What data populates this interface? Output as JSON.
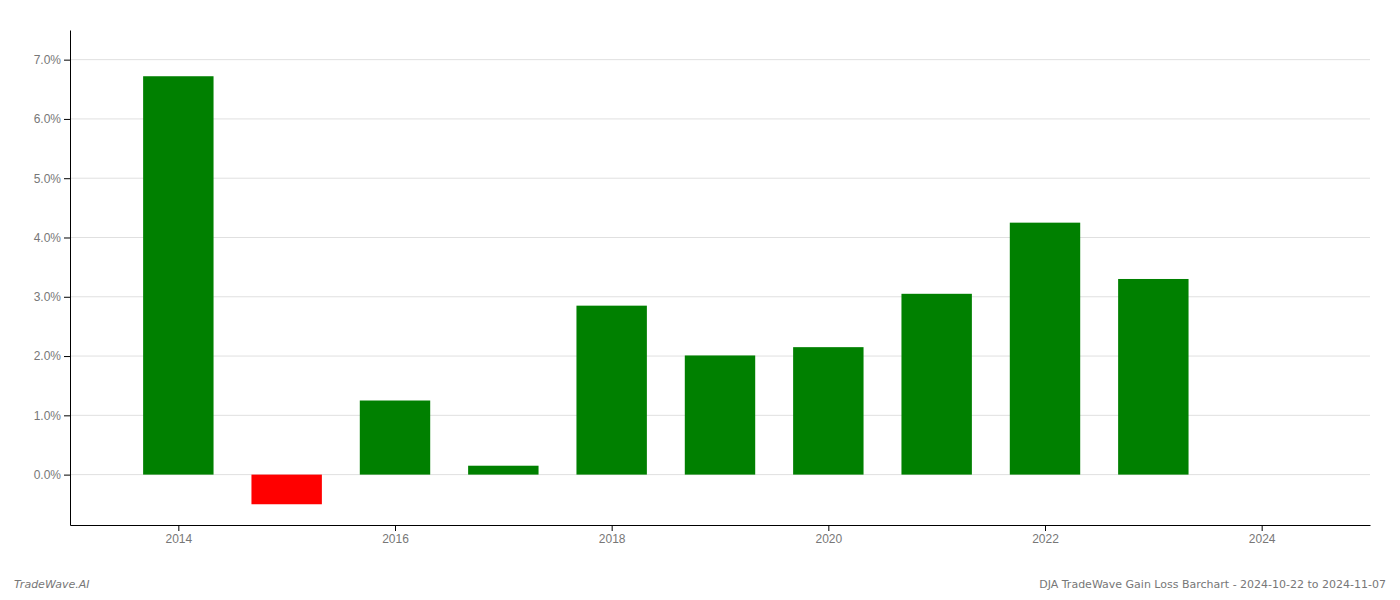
{
  "chart_data": {
    "type": "bar",
    "x": [
      2014,
      2015,
      2016,
      2017,
      2018,
      2019,
      2020,
      2021,
      2022,
      2023
    ],
    "values": [
      0.0672,
      -0.005,
      0.0125,
      0.0015,
      0.0285,
      0.0201,
      0.0215,
      0.0305,
      0.0425,
      0.033
    ],
    "colors": [
      "#008000",
      "#ff0000",
      "#008000",
      "#008000",
      "#008000",
      "#008000",
      "#008000",
      "#008000",
      "#008000",
      "#008000"
    ],
    "xlim": [
      2013.0,
      2025.0
    ],
    "xticks": [
      2014,
      2016,
      2018,
      2020,
      2022,
      2024
    ],
    "ylim": [
      -0.0085,
      0.075
    ],
    "yticks": [
      {
        "value": 0.0,
        "label": "0.0%"
      },
      {
        "value": 0.01,
        "label": "1.0%"
      },
      {
        "value": 0.02,
        "label": "2.0%"
      },
      {
        "value": 0.03,
        "label": "3.0%"
      },
      {
        "value": 0.04,
        "label": "4.0%"
      },
      {
        "value": 0.05,
        "label": "5.0%"
      },
      {
        "value": 0.06,
        "label": "6.0%"
      },
      {
        "value": 0.07,
        "label": "7.0%"
      }
    ],
    "grid": true,
    "annotations": [
      "TradeWave.AI",
      "DJA TradeWave Gain Loss Barchart - 2024-10-22 to 2024-11-07"
    ]
  }
}
